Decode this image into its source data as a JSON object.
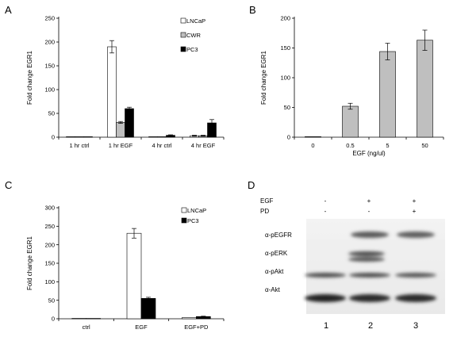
{
  "chart_data": [
    {
      "panel": "A",
      "type": "bar",
      "ylabel": "Fold change EGR1",
      "ylim": [
        0,
        250
      ],
      "yticks": [
        0,
        50,
        100,
        150,
        200,
        250
      ],
      "categories": [
        "1 hr ctrl",
        "1 hr EGF",
        "4 hr ctrl",
        "4 hr EGF"
      ],
      "series": [
        {
          "name": "LNCaP",
          "color": "#ffffff",
          "values": [
            1,
            190,
            1,
            3
          ],
          "errors": [
            0,
            13,
            0,
            1
          ]
        },
        {
          "name": "CWR",
          "color": "#bfbfbf",
          "values": [
            1,
            31,
            1,
            3
          ],
          "errors": [
            0,
            2,
            0,
            1
          ]
        },
        {
          "name": "PC3",
          "color": "#000000",
          "values": [
            1,
            60,
            4,
            30
          ],
          "errors": [
            0,
            3,
            1,
            7
          ]
        }
      ],
      "legend": "top-right"
    },
    {
      "panel": "B",
      "type": "bar",
      "ylabel": "Fold change EGR1",
      "xlabel": "EGF (ng/ul)",
      "ylim": [
        0,
        200
      ],
      "yticks": [
        0,
        50,
        100,
        150,
        200
      ],
      "categories": [
        "0",
        "0.5",
        "5",
        "50"
      ],
      "series": [
        {
          "name": "",
          "color": "#bfbfbf",
          "values": [
            1,
            52,
            144,
            163
          ],
          "errors": [
            0,
            5,
            14,
            17
          ]
        }
      ]
    },
    {
      "panel": "C",
      "type": "bar",
      "ylabel": "Fold change EGR1",
      "ylim": [
        0,
        300
      ],
      "yticks": [
        0,
        50,
        100,
        150,
        200,
        250,
        300
      ],
      "categories": [
        "ctrl",
        "EGF",
        "EGF+PD"
      ],
      "series": [
        {
          "name": "LNCaP",
          "color": "#ffffff",
          "values": [
            1,
            231,
            3
          ],
          "errors": [
            0,
            13,
            0
          ]
        },
        {
          "name": "PC3",
          "color": "#000000",
          "values": [
            1,
            55,
            6
          ],
          "errors": [
            0,
            3,
            1
          ]
        }
      ],
      "legend": "top-right"
    }
  ],
  "blot": {
    "panel": "D",
    "conditions": [
      {
        "name": "EGF",
        "values": [
          "-",
          "+",
          "+"
        ]
      },
      {
        "name": "PD",
        "values": [
          "-",
          "-",
          "+"
        ]
      }
    ],
    "rows": [
      "α-pEGFR",
      "α-pERK",
      "α-pAkt",
      "α-Akt"
    ],
    "lanes": [
      "1",
      "2",
      "3"
    ]
  }
}
